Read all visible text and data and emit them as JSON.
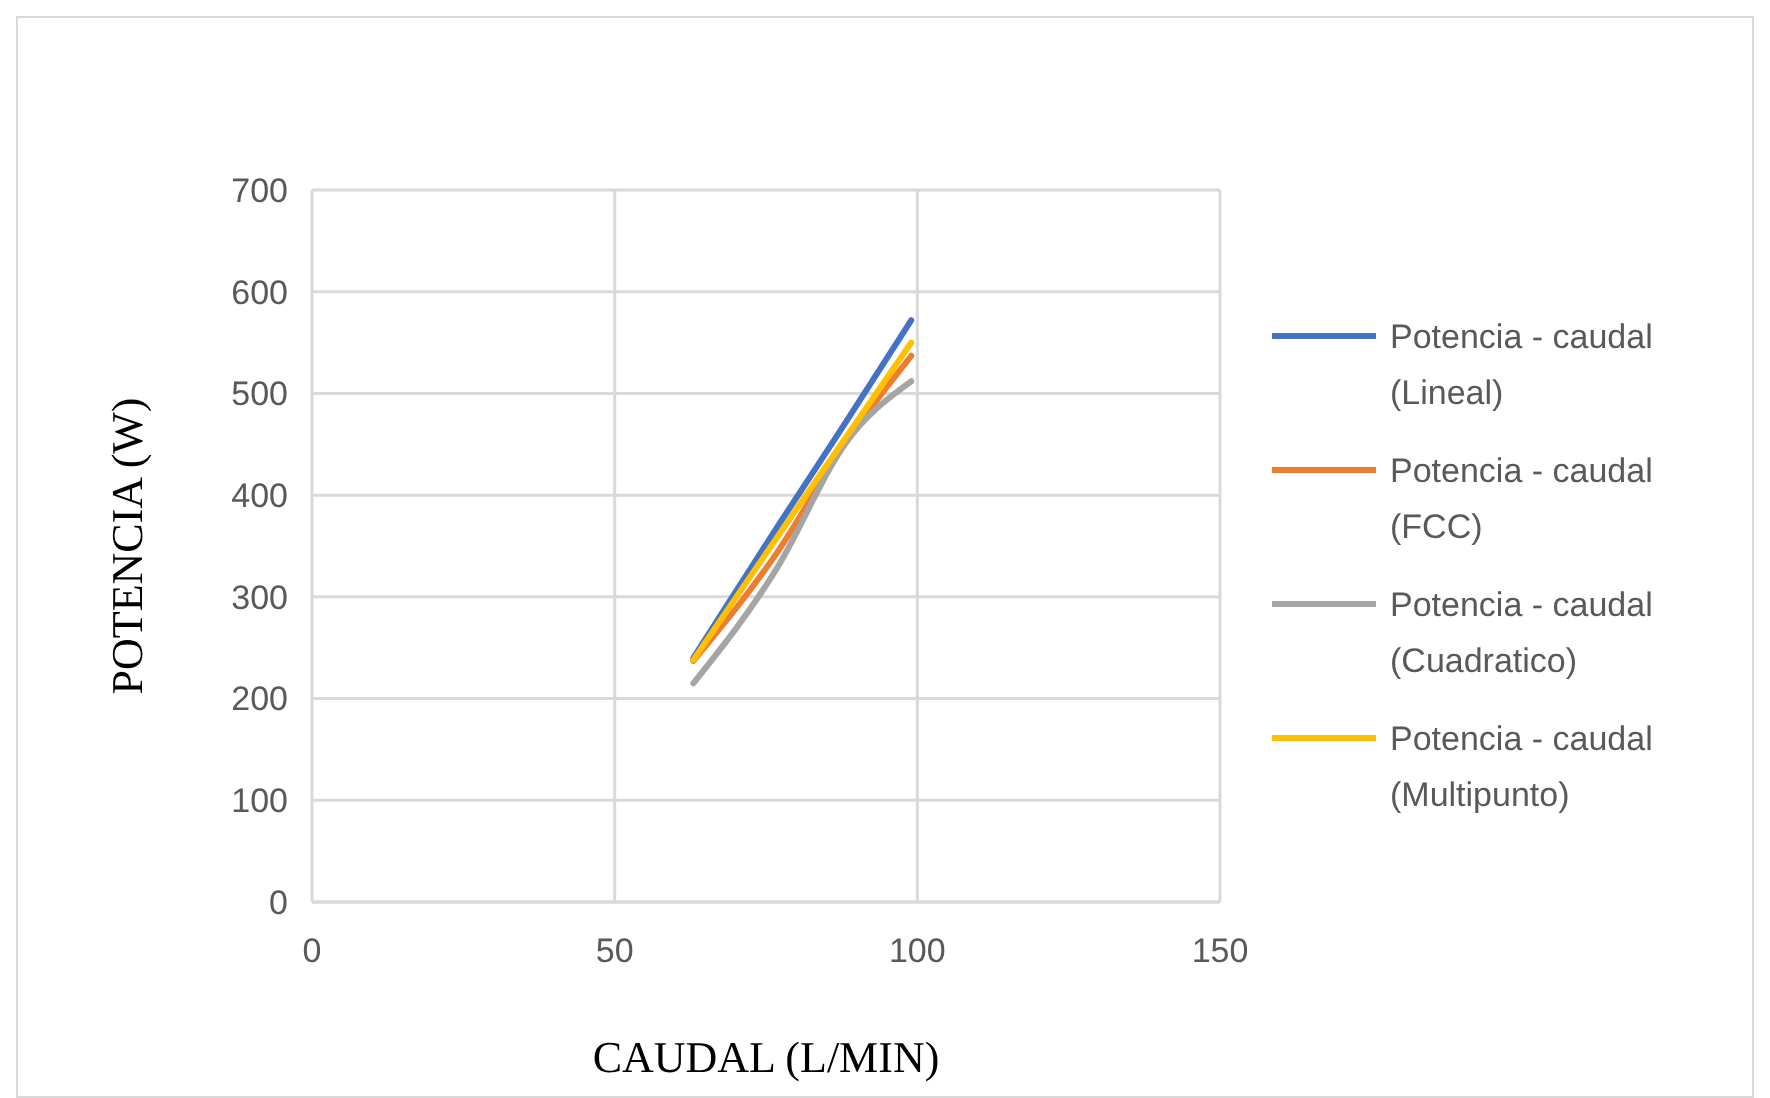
{
  "chart_data": {
    "type": "line",
    "xlabel": "CAUDAL (L/MIN)",
    "ylabel": "POTENCIA (W)",
    "x": [
      63,
      77,
      88,
      99
    ],
    "xlim": [
      0,
      150
    ],
    "xticks": [
      0,
      50,
      100,
      150
    ],
    "ylim": [
      0,
      700
    ],
    "yticks": [
      0,
      100,
      200,
      300,
      400,
      500,
      600,
      700
    ],
    "grid": true,
    "legend": "right",
    "marker": "none",
    "line_style": "solid",
    "series": [
      {
        "name": "Potencia - caudal (Lineal)",
        "color": "#4472c4",
        "values": [
          240,
          370,
          470,
          572
        ]
      },
      {
        "name": "Potencia - caudal (FCC)",
        "color": "#ed7d31",
        "values": [
          237,
          345,
          450,
          537
        ]
      },
      {
        "name": "Potencia - caudal (Cuadratico)",
        "color": "#a5a5a5",
        "values": [
          215,
          330,
          450,
          512
        ]
      },
      {
        "name": "Potencia - caudal (Multipunto)",
        "color": "#ffc000",
        "values": [
          238,
          360,
          455,
          550
        ]
      }
    ]
  }
}
